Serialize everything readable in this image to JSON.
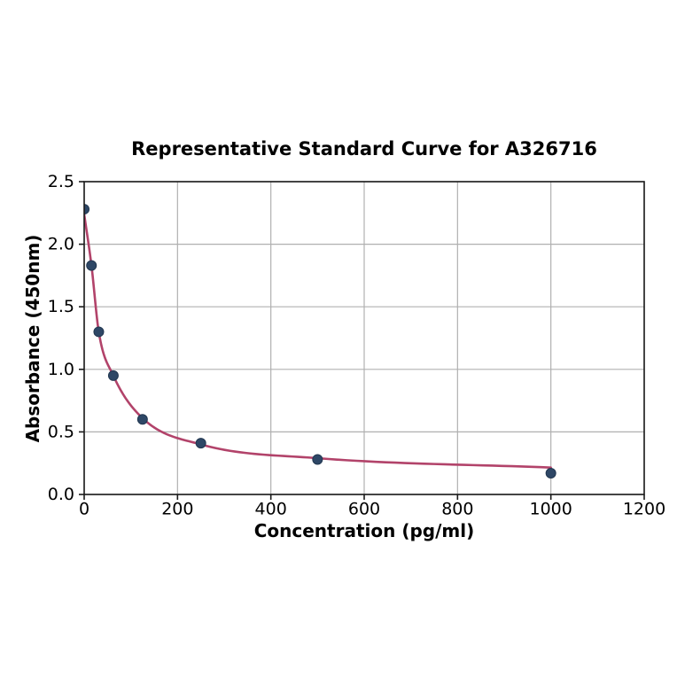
{
  "chart_data": {
    "type": "scatter",
    "title": "Representative Standard Curve for A326716",
    "xlabel": "Concentration (pg/ml)",
    "ylabel": "Absorbance (450nm)",
    "xlim": [
      0,
      1200
    ],
    "ylim": [
      0,
      2.5
    ],
    "x_ticks": [
      0,
      200,
      400,
      600,
      800,
      1000,
      1200
    ],
    "x_tick_labels": [
      "0",
      "200",
      "400",
      "600",
      "800",
      "1000",
      "1200"
    ],
    "y_ticks": [
      0,
      0.5,
      1,
      1.5,
      2,
      2.5
    ],
    "y_tick_labels": [
      "0.0",
      "0.5",
      "1.0",
      "1.5",
      "2.0",
      "2.5"
    ],
    "grid": true,
    "legend": "none",
    "series": [
      {
        "name": "standard-points",
        "type": "scatter",
        "points": [
          {
            "x": 0,
            "y": 2.28
          },
          {
            "x": 15.6,
            "y": 1.83
          },
          {
            "x": 31.25,
            "y": 1.3
          },
          {
            "x": 62.5,
            "y": 0.95
          },
          {
            "x": 125,
            "y": 0.6
          },
          {
            "x": 250,
            "y": 0.41
          },
          {
            "x": 500,
            "y": 0.28
          },
          {
            "x": 1000,
            "y": 0.17
          }
        ]
      },
      {
        "name": "fitted-curve",
        "type": "line",
        "points": [
          {
            "x": 0,
            "y": 2.24
          },
          {
            "x": 15.6,
            "y": 1.83
          },
          {
            "x": 31.25,
            "y": 1.3
          },
          {
            "x": 62.5,
            "y": 0.95
          },
          {
            "x": 125,
            "y": 0.61
          },
          {
            "x": 250,
            "y": 0.4
          },
          {
            "x": 500,
            "y": 0.29
          },
          {
            "x": 1000,
            "y": 0.215
          }
        ]
      }
    ],
    "colors": {
      "point": "#2e4766",
      "point_edge": "#223750",
      "curve": "#b2436a",
      "grid": "#b0b0b0",
      "axis": "#1a1a1a",
      "text": "#000000",
      "background": "#ffffff"
    }
  }
}
